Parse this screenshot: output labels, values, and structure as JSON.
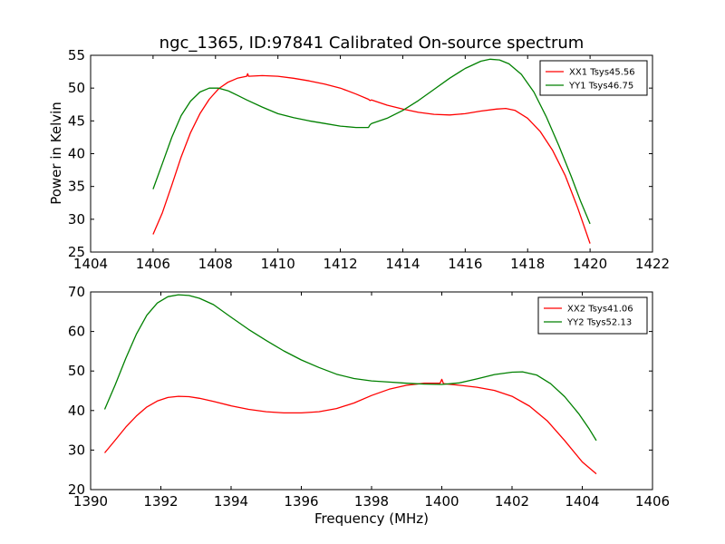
{
  "title": "ngc_1365, ID:97841 Calibrated On-source spectrum",
  "chart_data": [
    {
      "type": "line",
      "ylabel": "Power in Kelvin",
      "xlabel": "",
      "xlim": [
        1404,
        1422
      ],
      "ylim": [
        25,
        55
      ],
      "xticks": [
        1404,
        1406,
        1408,
        1410,
        1412,
        1414,
        1416,
        1418,
        1420,
        1422
      ],
      "yticks": [
        25,
        30,
        35,
        40,
        45,
        50,
        55
      ],
      "legend_position": "top-right",
      "series": [
        {
          "name": "XX1 Tsys45.56",
          "color": "#ff0000",
          "points": [
            [
              1406.0,
              27.7
            ],
            [
              1406.3,
              31.0
            ],
            [
              1406.6,
              35.2
            ],
            [
              1406.9,
              39.5
            ],
            [
              1407.2,
              43.2
            ],
            [
              1407.5,
              46.1
            ],
            [
              1407.8,
              48.3
            ],
            [
              1408.1,
              49.9
            ],
            [
              1408.4,
              50.9
            ],
            [
              1408.7,
              51.5
            ],
            [
              1409.0,
              51.8
            ],
            [
              1409.03,
              52.2
            ],
            [
              1409.06,
              51.8
            ],
            [
              1409.5,
              51.9
            ],
            [
              1410.0,
              51.8
            ],
            [
              1410.5,
              51.5
            ],
            [
              1411.0,
              51.1
            ],
            [
              1411.5,
              50.6
            ],
            [
              1412.0,
              50.0
            ],
            [
              1412.5,
              49.1
            ],
            [
              1412.9,
              48.3
            ],
            [
              1412.95,
              48.1
            ],
            [
              1413.0,
              48.2
            ],
            [
              1413.5,
              47.4
            ],
            [
              1414.0,
              46.8
            ],
            [
              1414.5,
              46.3
            ],
            [
              1415.0,
              46.0
            ],
            [
              1415.5,
              45.9
            ],
            [
              1416.0,
              46.1
            ],
            [
              1416.5,
              46.5
            ],
            [
              1417.0,
              46.8
            ],
            [
              1417.3,
              46.9
            ],
            [
              1417.6,
              46.6
            ],
            [
              1418.0,
              45.4
            ],
            [
              1418.4,
              43.4
            ],
            [
              1418.8,
              40.5
            ],
            [
              1419.2,
              36.7
            ],
            [
              1419.6,
              31.8
            ],
            [
              1420.0,
              26.3
            ]
          ]
        },
        {
          "name": "YY1 Tsys46.75",
          "color": "#008000",
          "points": [
            [
              1406.0,
              34.6
            ],
            [
              1406.3,
              38.5
            ],
            [
              1406.6,
              42.5
            ],
            [
              1406.9,
              45.8
            ],
            [
              1407.2,
              48.0
            ],
            [
              1407.5,
              49.4
            ],
            [
              1407.8,
              50.0
            ],
            [
              1408.1,
              50.0
            ],
            [
              1408.4,
              49.6
            ],
            [
              1408.7,
              48.9
            ],
            [
              1409.0,
              48.2
            ],
            [
              1409.5,
              47.1
            ],
            [
              1410.0,
              46.1
            ],
            [
              1410.5,
              45.5
            ],
            [
              1411.0,
              45.0
            ],
            [
              1411.5,
              44.6
            ],
            [
              1412.0,
              44.2
            ],
            [
              1412.5,
              44.0
            ],
            [
              1412.9,
              44.0
            ],
            [
              1412.95,
              44.4
            ],
            [
              1413.0,
              44.6
            ],
            [
              1413.5,
              45.4
            ],
            [
              1414.0,
              46.6
            ],
            [
              1414.5,
              48.1
            ],
            [
              1415.0,
              49.8
            ],
            [
              1415.5,
              51.5
            ],
            [
              1416.0,
              53.0
            ],
            [
              1416.5,
              54.1
            ],
            [
              1416.8,
              54.4
            ],
            [
              1417.1,
              54.3
            ],
            [
              1417.4,
              53.7
            ],
            [
              1417.8,
              52.1
            ],
            [
              1418.2,
              49.4
            ],
            [
              1418.6,
              45.6
            ],
            [
              1419.0,
              41.2
            ],
            [
              1419.4,
              36.5
            ],
            [
              1419.7,
              32.7
            ],
            [
              1420.0,
              29.3
            ]
          ]
        }
      ]
    },
    {
      "type": "line",
      "xlabel": "Frequency (MHz)",
      "ylabel": "",
      "xlim": [
        1390,
        1406
      ],
      "ylim": [
        20,
        70
      ],
      "xticks": [
        1390,
        1392,
        1394,
        1396,
        1398,
        1400,
        1402,
        1404,
        1406
      ],
      "yticks": [
        20,
        30,
        40,
        50,
        60,
        70
      ],
      "legend_position": "top-right",
      "series": [
        {
          "name": "XX2 Tsys41.06",
          "color": "#ff0000",
          "points": [
            [
              1390.4,
              29.3
            ],
            [
              1390.7,
              32.5
            ],
            [
              1391.0,
              35.8
            ],
            [
              1391.3,
              38.6
            ],
            [
              1391.6,
              40.9
            ],
            [
              1391.9,
              42.4
            ],
            [
              1392.2,
              43.3
            ],
            [
              1392.5,
              43.6
            ],
            [
              1392.8,
              43.5
            ],
            [
              1393.1,
              43.1
            ],
            [
              1393.5,
              42.3
            ],
            [
              1394.0,
              41.2
            ],
            [
              1394.5,
              40.3
            ],
            [
              1395.0,
              39.7
            ],
            [
              1395.5,
              39.4
            ],
            [
              1396.0,
              39.4
            ],
            [
              1396.5,
              39.7
            ],
            [
              1397.0,
              40.5
            ],
            [
              1397.5,
              41.9
            ],
            [
              1398.0,
              43.8
            ],
            [
              1398.5,
              45.4
            ],
            [
              1399.0,
              46.4
            ],
            [
              1399.5,
              46.9
            ],
            [
              1399.95,
              46.9
            ],
            [
              1400.0,
              47.9
            ],
            [
              1400.05,
              46.8
            ],
            [
              1400.5,
              46.4
            ],
            [
              1401.0,
              45.9
            ],
            [
              1401.5,
              45.1
            ],
            [
              1402.0,
              43.6
            ],
            [
              1402.5,
              41.1
            ],
            [
              1403.0,
              37.4
            ],
            [
              1403.5,
              32.4
            ],
            [
              1404.0,
              27.0
            ],
            [
              1404.4,
              24.0
            ]
          ]
        },
        {
          "name": "YY2 Tsys52.13",
          "color": "#008000",
          "points": [
            [
              1390.4,
              40.3
            ],
            [
              1390.7,
              46.5
            ],
            [
              1391.0,
              53.2
            ],
            [
              1391.3,
              59.3
            ],
            [
              1391.6,
              64.1
            ],
            [
              1391.9,
              67.2
            ],
            [
              1392.2,
              68.8
            ],
            [
              1392.5,
              69.3
            ],
            [
              1392.8,
              69.1
            ],
            [
              1393.1,
              68.4
            ],
            [
              1393.5,
              66.8
            ],
            [
              1394.0,
              63.6
            ],
            [
              1394.5,
              60.5
            ],
            [
              1395.0,
              57.7
            ],
            [
              1395.5,
              55.1
            ],
            [
              1396.0,
              52.8
            ],
            [
              1396.5,
              50.9
            ],
            [
              1397.0,
              49.2
            ],
            [
              1397.5,
              48.1
            ],
            [
              1398.0,
              47.5
            ],
            [
              1398.5,
              47.2
            ],
            [
              1399.0,
              46.9
            ],
            [
              1399.5,
              46.7
            ],
            [
              1400.0,
              46.6
            ],
            [
              1400.5,
              47.0
            ],
            [
              1401.0,
              48.0
            ],
            [
              1401.5,
              49.1
            ],
            [
              1402.0,
              49.7
            ],
            [
              1402.3,
              49.8
            ],
            [
              1402.7,
              49.0
            ],
            [
              1403.1,
              46.8
            ],
            [
              1403.5,
              43.5
            ],
            [
              1403.9,
              39.2
            ],
            [
              1404.2,
              35.3
            ],
            [
              1404.4,
              32.4
            ]
          ]
        }
      ]
    }
  ]
}
